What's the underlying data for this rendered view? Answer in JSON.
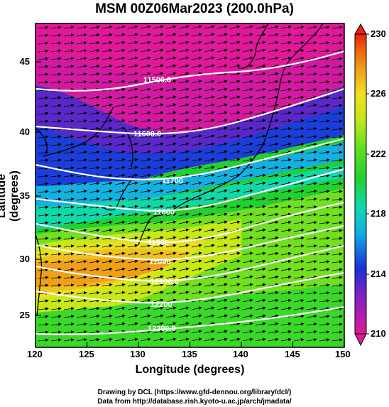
{
  "title": "MSM 00Z06Mar2023 (200.0hPa)",
  "x_axis": {
    "label": "Longitude (degrees)",
    "ticks": [
      "120",
      "125",
      "130",
      "135",
      "140",
      "145",
      "150"
    ],
    "range": [
      120,
      150
    ]
  },
  "y_axis": {
    "label": "Latitude  (degrees)",
    "ticks": [
      "25",
      "30",
      "35",
      "40",
      "45"
    ],
    "range": [
      22.5,
      48
    ]
  },
  "colorbar": {
    "ticks": [
      "210",
      "214",
      "218",
      "222",
      "226",
      "230"
    ],
    "range": [
      210,
      230
    ]
  },
  "contours": [
    {
      "label": "11500.0"
    },
    {
      "label": "11600.0"
    },
    {
      "label": "11700"
    },
    {
      "label": "11800"
    },
    {
      "label": "11900"
    },
    {
      "label": "12000"
    },
    {
      "label": "12100.0"
    },
    {
      "label": "12200"
    },
    {
      "label": "12300.0"
    }
  ],
  "credits": {
    "line1": "Drawing by DCL (https://www.gfd-dennou.org/library/dcl/)",
    "line2": "Data from http://database.rish.kyoto-u.ac.jp/arch/jmadata/"
  },
  "colors": {
    "magenta": "#e0189a",
    "blue": "#1c3ed8",
    "green": "#22d030",
    "yellow": "#e8f020",
    "orange": "#f0a018"
  }
}
